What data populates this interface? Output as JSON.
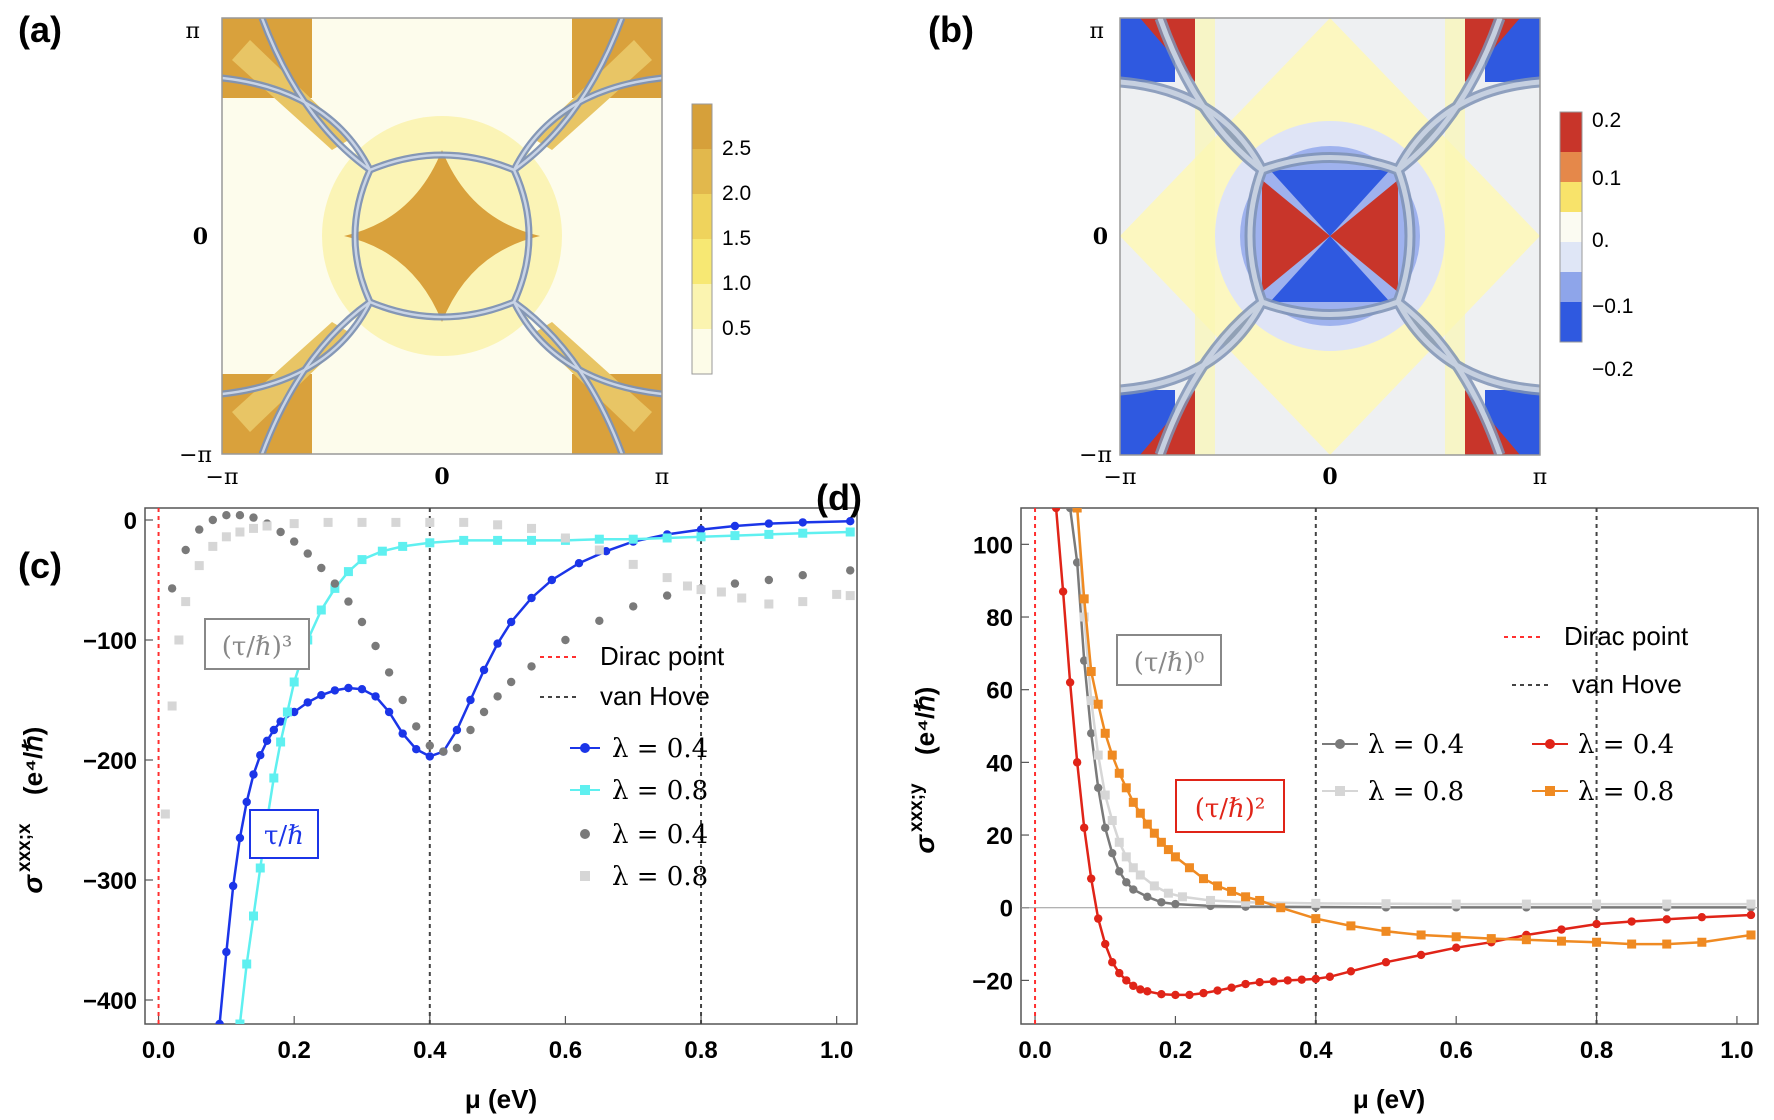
{
  "panels": {
    "a": {
      "letter": "(a)"
    },
    "b": {
      "letter": "(b)"
    },
    "c": {
      "letter": "(c)"
    },
    "d": {
      "letter": "(d)"
    }
  },
  "colors": {
    "blue": "#1b35e8",
    "cyan": "#5ff0f0",
    "dark_gray": "#7a7a7a",
    "light_gray": "#d6d6d6",
    "red": "#e02418",
    "orange": "#ef8a22",
    "dirac": "#ff3030",
    "vanhove": "#444444",
    "map_orange": "#d9a13c",
    "map_red": "#c8352a",
    "map_blue": "#2f59e0",
    "map_yellow": "#fbf6b4",
    "fermi_line": "#7f93b5"
  },
  "chart_data": [
    {
      "id": "a",
      "type": "heatmap",
      "title": "(a)",
      "x_ticks": [
        "−π",
        "0",
        "π"
      ],
      "y_ticks": [
        "π",
        "0",
        "−π"
      ],
      "colorbar": {
        "ticks": [
          "2.5",
          "2.0",
          "1.5",
          "1.0",
          "0.5"
        ],
        "range": [
          0,
          3.0
        ]
      }
    },
    {
      "id": "b",
      "type": "heatmap",
      "title": "(b)",
      "x_ticks": [
        "−π",
        "0",
        "π"
      ],
      "y_ticks": [
        "π",
        "0",
        "−π"
      ],
      "colorbar": {
        "ticks": [
          "0.2",
          "0.1",
          "0.",
          "−0.1",
          "−0.2"
        ],
        "range": [
          -0.22,
          0.22
        ]
      }
    },
    {
      "id": "c",
      "type": "scatter",
      "title": "(c)",
      "xlabel": "μ (eV)",
      "ylabel_main": "σ",
      "ylabel_sup": "xxx;x",
      "ylabel_units": "(e⁴/ℏ)",
      "xlim": [
        -0.02,
        1.03
      ],
      "ylim": [
        -420,
        10
      ],
      "x_ticks": [
        0.0,
        0.2,
        0.4,
        0.6,
        0.8,
        1.0
      ],
      "x_tick_labels": [
        "0.0",
        "0.2",
        "0.4",
        "0.6",
        "0.8",
        "1.0"
      ],
      "y_ticks": [
        0,
        -100,
        -200,
        -300,
        -400
      ],
      "y_tick_labels": [
        "0",
        "−100",
        "−200",
        "−300",
        "−400"
      ],
      "vlines": {
        "dirac": 0.0,
        "vanhove": [
          0.4,
          0.8
        ]
      },
      "series": [
        {
          "name": "λ = 0.4",
          "group": "τ/ℏ",
          "color": "blue",
          "marker": "circle",
          "line": true,
          "x": [
            0.09,
            0.1,
            0.11,
            0.12,
            0.13,
            0.14,
            0.15,
            0.16,
            0.17,
            0.18,
            0.2,
            0.22,
            0.24,
            0.26,
            0.28,
            0.3,
            0.32,
            0.34,
            0.36,
            0.38,
            0.4,
            0.42,
            0.44,
            0.46,
            0.48,
            0.5,
            0.52,
            0.55,
            0.58,
            0.62,
            0.66,
            0.7,
            0.75,
            0.8,
            0.85,
            0.9,
            0.95,
            1.02
          ],
          "y": [
            -420,
            -360,
            -305,
            -265,
            -235,
            -212,
            -196,
            -184,
            -175,
            -168,
            -160,
            -152,
            -146,
            -142,
            -140,
            -141,
            -147,
            -160,
            -178,
            -191,
            -197,
            -193,
            -175,
            -150,
            -125,
            -103,
            -85,
            -65,
            -50,
            -36,
            -26,
            -18,
            -12,
            -8,
            -5,
            -3,
            -2,
            -1
          ]
        },
        {
          "name": "λ = 0.8",
          "group": "τ/ℏ",
          "color": "cyan",
          "marker": "square",
          "line": true,
          "x": [
            0.12,
            0.13,
            0.14,
            0.15,
            0.16,
            0.17,
            0.18,
            0.19,
            0.2,
            0.22,
            0.24,
            0.26,
            0.28,
            0.3,
            0.33,
            0.36,
            0.4,
            0.45,
            0.5,
            0.55,
            0.6,
            0.65,
            0.7,
            0.75,
            0.8,
            0.85,
            0.9,
            0.95,
            1.02
          ],
          "y": [
            -420,
            -370,
            -330,
            -290,
            -250,
            -215,
            -185,
            -160,
            -135,
            -100,
            -75,
            -57,
            -43,
            -33,
            -26,
            -22,
            -19,
            -17,
            -17,
            -17,
            -17,
            -16,
            -16,
            -15,
            -14,
            -13,
            -12,
            -11,
            -10
          ]
        },
        {
          "name": "λ = 0.4",
          "group": "(τ/ℏ)³",
          "color": "dark_gray",
          "marker": "circle",
          "line": false,
          "x": [
            0.02,
            0.04,
            0.06,
            0.08,
            0.1,
            0.12,
            0.14,
            0.16,
            0.18,
            0.2,
            0.22,
            0.24,
            0.26,
            0.28,
            0.3,
            0.32,
            0.34,
            0.36,
            0.38,
            0.4,
            0.42,
            0.44,
            0.46,
            0.48,
            0.5,
            0.52,
            0.55,
            0.6,
            0.65,
            0.7,
            0.75,
            0.8,
            0.85,
            0.9,
            0.95,
            1.02
          ],
          "y": [
            -57,
            -25,
            -8,
            0,
            4,
            4,
            2,
            -3,
            -10,
            -18,
            -28,
            -40,
            -53,
            -68,
            -85,
            -105,
            -127,
            -150,
            -172,
            -188,
            -193,
            -190,
            -175,
            -160,
            -147,
            -135,
            -122,
            -100,
            -84,
            -72,
            -63,
            -57,
            -53,
            -50,
            -46,
            -42
          ]
        },
        {
          "name": "λ = 0.8",
          "group": "(τ/ℏ)³",
          "color": "light_gray",
          "marker": "square",
          "line": false,
          "x": [
            0.01,
            0.02,
            0.03,
            0.04,
            0.06,
            0.08,
            0.1,
            0.12,
            0.14,
            0.16,
            0.2,
            0.25,
            0.3,
            0.35,
            0.4,
            0.45,
            0.5,
            0.55,
            0.6,
            0.65,
            0.7,
            0.75,
            0.78,
            0.8,
            0.83,
            0.86,
            0.9,
            0.95,
            1.0,
            1.02
          ],
          "y": [
            -245,
            -155,
            -100,
            -68,
            -38,
            -22,
            -14,
            -10,
            -7,
            -5,
            -3,
            -2,
            -2,
            -2,
            -2,
            -2,
            -4,
            -7,
            -15,
            -25,
            -37,
            -48,
            -55,
            -58,
            -60,
            -65,
            -70,
            -68,
            -62,
            -63
          ]
        }
      ],
      "labels": {
        "dirac": "Dirac point",
        "vanhove": "van Hove",
        "box_cubed": "(τ/ℏ)³",
        "box_first": "τ/ℏ"
      }
    },
    {
      "id": "d",
      "type": "scatter",
      "title": "(d)",
      "xlabel": "μ (eV)",
      "ylabel_main": "σ",
      "ylabel_sup": "xxx;y",
      "ylabel_units": "(e⁴/ℏ)",
      "xlim": [
        -0.02,
        1.03
      ],
      "ylim": [
        -32,
        110
      ],
      "x_ticks": [
        0.0,
        0.2,
        0.4,
        0.6,
        0.8,
        1.0
      ],
      "x_tick_labels": [
        "0.0",
        "0.2",
        "0.4",
        "0.6",
        "0.8",
        "1.0"
      ],
      "y_ticks": [
        100,
        80,
        60,
        40,
        20,
        0,
        -20
      ],
      "y_tick_labels": [
        "100",
        "80",
        "60",
        "40",
        "20",
        "0",
        "−20"
      ],
      "vlines": {
        "dirac": 0.0,
        "vanhove": [
          0.4,
          0.8
        ]
      },
      "series": [
        {
          "name": "λ = 0.4",
          "group": "(τ/ℏ)⁰",
          "color": "dark_gray",
          "marker": "circle",
          "line": true,
          "x": [
            0.05,
            0.06,
            0.07,
            0.08,
            0.09,
            0.1,
            0.11,
            0.12,
            0.13,
            0.14,
            0.16,
            0.18,
            0.2,
            0.25,
            0.3,
            0.4,
            0.5,
            0.6,
            0.7,
            0.8,
            0.9,
            1.02
          ],
          "y": [
            110,
            95,
            68,
            48,
            33,
            22,
            15,
            10,
            7,
            5,
            3,
            1.5,
            1,
            0.5,
            0.3,
            0.2,
            0.1,
            0.1,
            0.1,
            0.1,
            0.1,
            0.1
          ]
        },
        {
          "name": "λ = 0.8",
          "group": "(τ/ℏ)⁰",
          "color": "light_gray",
          "marker": "square",
          "line": true,
          "x": [
            0.06,
            0.07,
            0.08,
            0.09,
            0.1,
            0.11,
            0.12,
            0.13,
            0.14,
            0.15,
            0.17,
            0.19,
            0.21,
            0.25,
            0.3,
            0.4,
            0.5,
            0.6,
            0.7,
            0.8,
            0.9,
            1.02
          ],
          "y": [
            110,
            80,
            57,
            42,
            31,
            24,
            18,
            14,
            11,
            9,
            6,
            4,
            3,
            2,
            1.5,
            1.2,
            1.1,
            1,
            1,
            1,
            1,
            1
          ]
        },
        {
          "name": "λ = 0.4",
          "group": "(τ/ℏ)²",
          "color": "red",
          "marker": "circle",
          "line": true,
          "x": [
            0.03,
            0.04,
            0.05,
            0.06,
            0.07,
            0.08,
            0.09,
            0.1,
            0.11,
            0.12,
            0.13,
            0.14,
            0.15,
            0.16,
            0.18,
            0.2,
            0.22,
            0.24,
            0.26,
            0.28,
            0.3,
            0.32,
            0.34,
            0.36,
            0.38,
            0.4,
            0.42,
            0.45,
            0.5,
            0.55,
            0.6,
            0.65,
            0.7,
            0.75,
            0.8,
            0.85,
            0.9,
            0.95,
            1.02
          ],
          "y": [
            110,
            87,
            62,
            40,
            22,
            8,
            -3,
            -10,
            -15,
            -18,
            -20,
            -21.5,
            -22.5,
            -23,
            -23.8,
            -24,
            -24,
            -23.5,
            -22.8,
            -22,
            -21,
            -20.5,
            -20.3,
            -20,
            -19.8,
            -19.6,
            -19,
            -17.5,
            -15,
            -13,
            -11,
            -9.5,
            -7.5,
            -6,
            -4.5,
            -3.8,
            -3.2,
            -2.6,
            -2
          ]
        },
        {
          "name": "λ = 0.8",
          "group": "(τ/ℏ)²",
          "color": "orange",
          "marker": "square",
          "line": true,
          "x": [
            0.06,
            0.07,
            0.08,
            0.09,
            0.1,
            0.11,
            0.12,
            0.13,
            0.14,
            0.15,
            0.16,
            0.17,
            0.18,
            0.19,
            0.2,
            0.22,
            0.24,
            0.26,
            0.28,
            0.3,
            0.32,
            0.35,
            0.4,
            0.45,
            0.5,
            0.55,
            0.6,
            0.65,
            0.7,
            0.75,
            0.8,
            0.85,
            0.9,
            0.95,
            1.02
          ],
          "y": [
            110,
            85,
            65,
            56,
            48,
            42,
            37,
            33,
            29,
            26,
            23,
            20.5,
            18,
            16,
            14,
            11,
            8,
            6,
            4.5,
            3,
            2,
            0,
            -3,
            -5,
            -6.5,
            -7.5,
            -8,
            -8.5,
            -8.8,
            -9.2,
            -9.5,
            -10,
            -10,
            -9.5,
            -7.5
          ]
        }
      ],
      "labels": {
        "dirac": "Dirac point",
        "vanhove": "van Hove",
        "box_zero": "(τ/ℏ)⁰",
        "box_second": "(τ/ℏ)²"
      }
    }
  ]
}
